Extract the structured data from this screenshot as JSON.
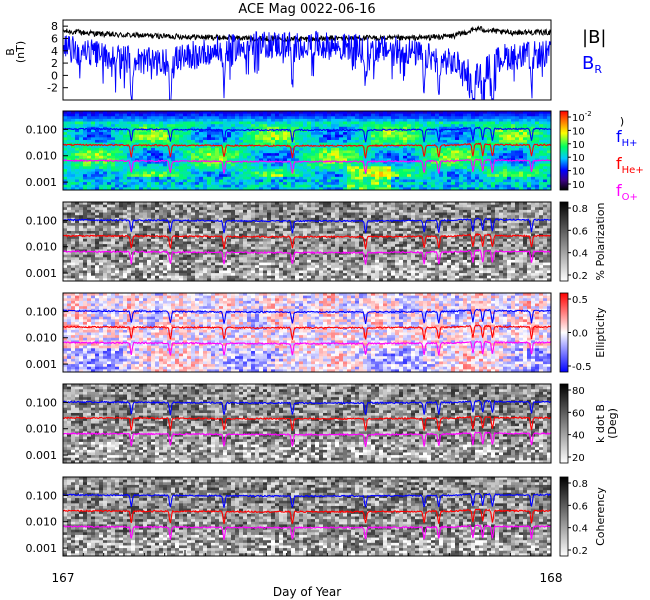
{
  "chart_data": {
    "type": "line",
    "title": "ACE Mag 0022-06-16",
    "xlabel": "Day of Year",
    "x_ticks": [
      "167",
      "168"
    ],
    "xlim": [
      167,
      168
    ],
    "colors": {
      "B_total": "#000000",
      "B_R": "#0000ff",
      "f_H": "#0000ff",
      "f_He": "#ff0000",
      "f_O": "#ff00ff"
    },
    "panels": [
      {
        "id": "mag",
        "type": "line",
        "ylabel": "B",
        "ylabel_unit": "(nT)",
        "ylim": [
          -4,
          9
        ],
        "y_ticks": [
          "8",
          "6",
          "4",
          "2",
          "0",
          "-2"
        ],
        "legend": [
          {
            "label": "|B|",
            "color": "#000000"
          },
          {
            "label": "B",
            "sub": "R",
            "color": "#0000ff"
          }
        ],
        "series": [
          {
            "key": "B_total",
            "x": [
              167.0,
              167.1,
              167.2,
              167.3,
              167.4,
              167.5,
              167.6,
              167.7,
              167.8,
              167.85,
              167.9,
              168.0
            ],
            "values": [
              7.2,
              6.6,
              6.4,
              6.2,
              6.0,
              5.9,
              6.1,
              6.0,
              6.4,
              7.6,
              7.0,
              7.0
            ]
          },
          {
            "key": "B_R",
            "x": [
              167.0,
              167.1,
              167.2,
              167.3,
              167.4,
              167.5,
              167.6,
              167.7,
              167.8,
              167.85,
              167.9,
              168.0
            ],
            "values": [
              4.5,
              3.0,
              2.0,
              4.0,
              5.0,
              5.0,
              4.5,
              4.0,
              2.0,
              0.0,
              3.0,
              3.5
            ]
          }
        ]
      },
      {
        "id": "power",
        "type": "heatmap",
        "ylabel": "",
        "y_ticks": [
          "0.100",
          "0.010",
          "0.001"
        ],
        "colorbar": {
          "scale": "rainbow",
          "ticks": [
            "10",
            "10",
            "10",
            "10",
            "10",
            "10"
          ],
          "tick_exps": [
            "-2",
            "",
            "",
            "",
            "",
            ""
          ],
          "title": ")"
        },
        "legend": [
          {
            "label": "f",
            "sub": "H+",
            "color": "#0000ff"
          },
          {
            "label": "f",
            "sub": "He+",
            "color": "#ff0000"
          },
          {
            "label": "f",
            "sub": "O+",
            "color": "#ff00ff"
          }
        ]
      },
      {
        "id": "polarization",
        "type": "heatmap",
        "ylabel": "",
        "y_ticks": [
          "0.100",
          "0.010",
          "0.001"
        ],
        "colorbar": {
          "scale": "gray",
          "ticks": [
            "0.8",
            "0.6",
            "0.4",
            "0.2"
          ],
          "title": "% Polarization"
        }
      },
      {
        "id": "ellipticity",
        "type": "heatmap",
        "ylabel": "",
        "y_ticks": [
          "0.100",
          "0.010",
          "0.001"
        ],
        "colorbar": {
          "scale": "diverging",
          "ticks": [
            "0.5",
            "0.0",
            "-0.5"
          ],
          "title": "Ellipticity"
        }
      },
      {
        "id": "kdotb",
        "type": "heatmap",
        "ylabel": "",
        "y_ticks": [
          "0.100",
          "0.010",
          "0.001"
        ],
        "colorbar": {
          "scale": "gray_r",
          "ticks": [
            "80",
            "60",
            "40",
            "20"
          ],
          "title": "k dot B",
          "title2": "(Deg)"
        }
      },
      {
        "id": "coherency",
        "type": "heatmap",
        "ylabel": "",
        "y_ticks": [
          "0.100",
          "0.010",
          "0.001"
        ],
        "colorbar": {
          "scale": "gray",
          "ticks": [
            "0.8",
            "0.6",
            "0.4",
            "0.2"
          ],
          "title": "Coherency"
        }
      }
    ],
    "gyrofrequency_lines": {
      "x": [
        167.0,
        167.2,
        167.4,
        167.6,
        167.8,
        167.85,
        167.9,
        168.0
      ],
      "f_H": [
        0.105,
        0.1,
        0.095,
        0.095,
        0.1,
        0.115,
        0.105,
        0.105
      ],
      "f_He": [
        0.026,
        0.025,
        0.024,
        0.024,
        0.025,
        0.029,
        0.026,
        0.026
      ],
      "f_O": [
        0.0066,
        0.0063,
        0.006,
        0.006,
        0.0063,
        0.0072,
        0.0066,
        0.0066
      ]
    }
  }
}
